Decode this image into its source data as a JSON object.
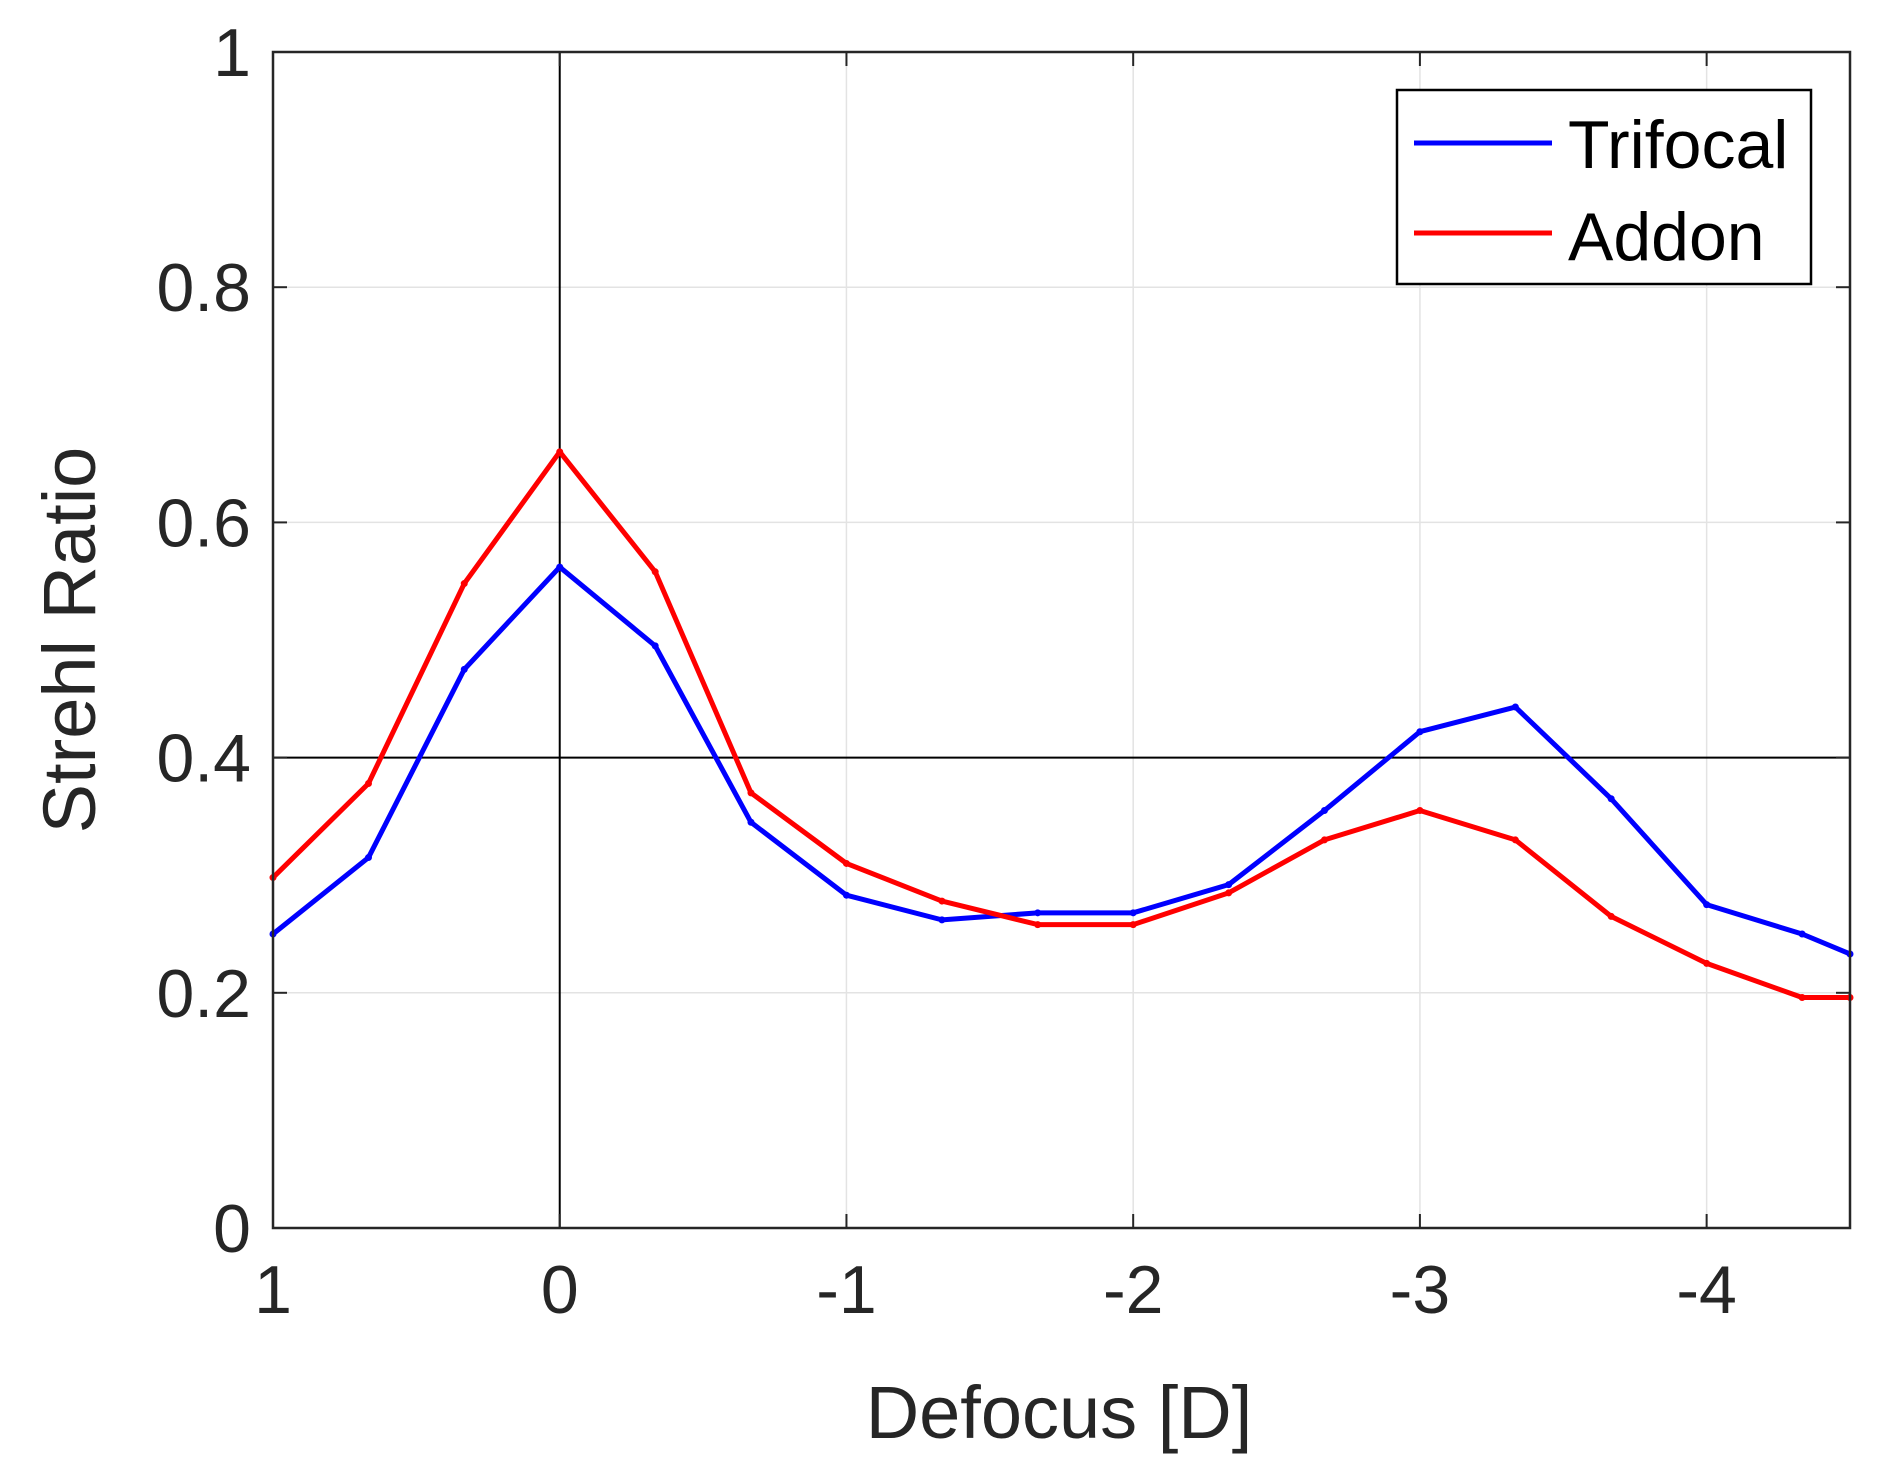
{
  "chart_data": {
    "type": "line",
    "title": "",
    "xlabel": "Defocus [D]",
    "ylabel": "Strehl Ratio",
    "xlim": [
      1,
      -4.5
    ],
    "ylim": [
      0,
      1
    ],
    "xticks": [
      1,
      0,
      -1,
      -2,
      -3,
      -4
    ],
    "xtick_labels": [
      "1",
      "0",
      "-1",
      "-2",
      "-3",
      "-4"
    ],
    "yticks": [
      0,
      0.2,
      0.4,
      0.6,
      0.8,
      1
    ],
    "ytick_labels": [
      "0",
      "0.2",
      "0.4",
      "0.6",
      "0.8",
      "1"
    ],
    "grid": true,
    "reference_lines": {
      "x": 0,
      "y": 0.4
    },
    "legend": {
      "location": "top-right"
    },
    "series": [
      {
        "name": "Trifocal",
        "color": "#0000ff",
        "x": [
          1,
          0.667,
          0.333,
          0,
          -0.333,
          -0.667,
          -1,
          -1.333,
          -1.667,
          -2,
          -2.333,
          -2.667,
          -3,
          -3.333,
          -3.667,
          -4,
          -4.333,
          -4.5
        ],
        "y": [
          0.25,
          0.315,
          0.475,
          0.562,
          0.495,
          0.345,
          0.283,
          0.262,
          0.268,
          0.268,
          0.292,
          0.355,
          0.422,
          0.443,
          0.365,
          0.275,
          0.25,
          0.233
        ]
      },
      {
        "name": "Addon",
        "color": "#ff0000",
        "x": [
          1,
          0.667,
          0.333,
          0,
          -0.333,
          -0.667,
          -1,
          -1.333,
          -1.667,
          -2,
          -2.333,
          -2.667,
          -3,
          -3.333,
          -3.667,
          -4,
          -4.333,
          -4.5
        ],
        "y": [
          0.298,
          0.378,
          0.548,
          0.66,
          0.558,
          0.37,
          0.31,
          0.278,
          0.258,
          0.258,
          0.285,
          0.33,
          0.355,
          0.33,
          0.265,
          0.225,
          0.196,
          0.196
        ]
      }
    ]
  }
}
